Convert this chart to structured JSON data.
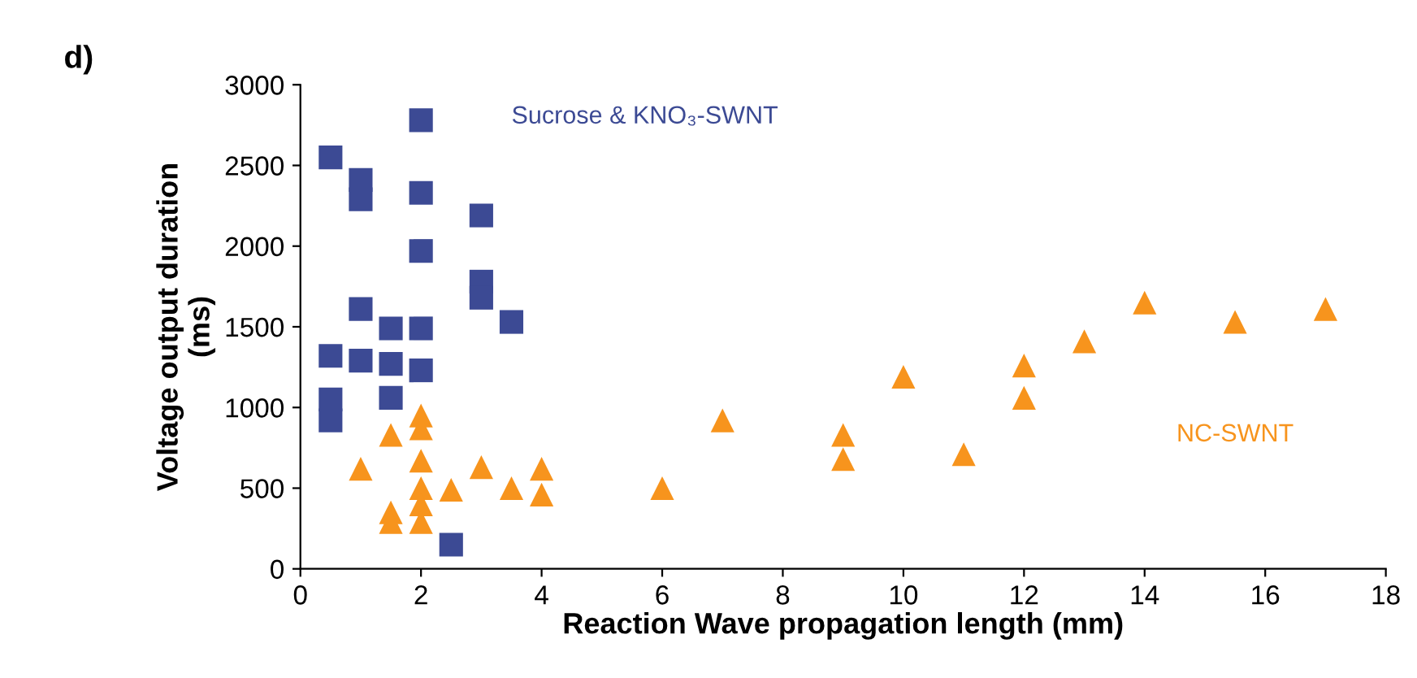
{
  "chart_data": {
    "type": "scatter",
    "xlabel": "Reaction Wave propagation length (mm)",
    "ylabel": "Voltage output duration\n(ms)",
    "annotations": [
      "d)"
    ],
    "xlim": [
      0,
      18
    ],
    "xticks": [
      0,
      2,
      4,
      6,
      8,
      10,
      12,
      14,
      16,
      18
    ],
    "ylim": [
      0,
      3000
    ],
    "yticks": [
      0,
      500,
      1000,
      1500,
      2000,
      2500,
      3000
    ],
    "grid": false,
    "legend": false,
    "series": [
      {
        "name": "Sucrose & KNO₃-SWNT",
        "color": "#3c4a94",
        "marker": "square",
        "x": [
          0.5,
          1,
          1,
          2,
          2,
          2,
          3,
          3,
          3,
          3.5,
          1,
          1.5,
          2,
          0.5,
          1,
          1.5,
          2,
          1.5,
          0.5,
          0.5,
          2.5
        ],
        "values": [
          2550,
          2410,
          2290,
          2780,
          2330,
          1970,
          2190,
          1780,
          1680,
          1530,
          1610,
          1490,
          1490,
          1320,
          1290,
          1270,
          1230,
          1060,
          1050,
          920,
          150
        ]
      },
      {
        "name": "NC-SWNT",
        "color": "#f7941d",
        "marker": "triangle",
        "x": [
          1,
          1.5,
          1.5,
          1.5,
          2,
          2,
          2,
          2,
          2,
          2,
          2.5,
          3,
          3.5,
          4,
          4,
          6,
          7,
          9,
          9,
          10,
          11,
          12,
          12,
          13,
          14,
          15.5,
          17
        ],
        "values": [
          620,
          830,
          350,
          290,
          950,
          870,
          670,
          500,
          400,
          290,
          490,
          630,
          500,
          620,
          460,
          500,
          920,
          830,
          680,
          1190,
          710,
          1260,
          1060,
          1410,
          1650,
          1530,
          1610
        ]
      }
    ]
  }
}
